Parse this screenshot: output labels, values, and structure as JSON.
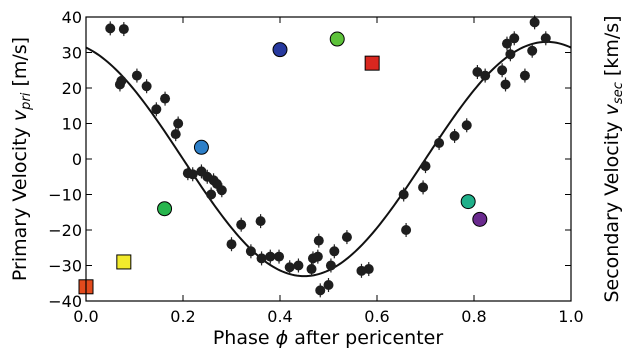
{
  "chart_data": {
    "type": "scatter",
    "title": "",
    "xlabel": "Phase ϕ after pericenter",
    "ylabel_left": "Primary Velocity v_pri [m/s]",
    "ylabel_right": "Secondary Velocity v_sec [km/s]",
    "xlabel_parts": [
      "Phase ",
      "ϕ",
      " after pericenter"
    ],
    "ylabel_left_parts": [
      "Primary Velocity ",
      "v",
      "pri",
      " [m/s]"
    ],
    "ylabel_right_parts": [
      "Secondary Velocity ",
      "v",
      "sec",
      " [km/s]"
    ],
    "xlim": [
      0.0,
      1.0
    ],
    "ylim": [
      -40,
      40
    ],
    "xticks": [
      0.0,
      0.2,
      0.4,
      0.6,
      0.8,
      1.0
    ],
    "xtick_labels": [
      "0.0",
      "0.2",
      "0.4",
      "0.6",
      "0.8",
      "1.0"
    ],
    "yticks": [
      -40,
      -30,
      -20,
      -10,
      0,
      10,
      20,
      30,
      40
    ],
    "ytick_labels": [
      "−40",
      "−30",
      "−20",
      "−10",
      "0",
      "10",
      "20",
      "30",
      "40"
    ],
    "grid": false,
    "legend": "none",
    "primary_rv": [
      [
        0.05,
        36.8
      ],
      [
        0.07,
        21.0
      ],
      [
        0.073,
        22.0
      ],
      [
        0.078,
        36.6
      ],
      [
        0.105,
        23.5
      ],
      [
        0.125,
        20.5
      ],
      [
        0.145,
        14.0
      ],
      [
        0.163,
        17.0
      ],
      [
        0.185,
        7.0
      ],
      [
        0.19,
        10.0
      ],
      [
        0.21,
        -4.0
      ],
      [
        0.22,
        -4.3
      ],
      [
        0.238,
        -3.5
      ],
      [
        0.25,
        -5.0
      ],
      [
        0.258,
        -10.0
      ],
      [
        0.263,
        -6.0
      ],
      [
        0.27,
        -7.0
      ],
      [
        0.28,
        -8.8
      ],
      [
        0.3,
        -24.0
      ],
      [
        0.32,
        -18.5
      ],
      [
        0.34,
        -26.0
      ],
      [
        0.36,
        -17.5
      ],
      [
        0.362,
        -28.0
      ],
      [
        0.38,
        -27.5
      ],
      [
        0.398,
        -27.5
      ],
      [
        0.42,
        -30.5
      ],
      [
        0.438,
        -30.0
      ],
      [
        0.465,
        -31.0
      ],
      [
        0.468,
        -28.0
      ],
      [
        0.478,
        -27.5
      ],
      [
        0.48,
        -23.0
      ],
      [
        0.483,
        -37.0
      ],
      [
        0.5,
        -35.5
      ],
      [
        0.505,
        -30.0
      ],
      [
        0.512,
        -26.0
      ],
      [
        0.538,
        -22.0
      ],
      [
        0.568,
        -31.5
      ],
      [
        0.583,
        -31.0
      ],
      [
        0.655,
        -10.0
      ],
      [
        0.66,
        -20.0
      ],
      [
        0.695,
        -8.0
      ],
      [
        0.7,
        -2.0
      ],
      [
        0.728,
        4.5
      ],
      [
        0.76,
        6.5
      ],
      [
        0.785,
        9.5
      ],
      [
        0.807,
        24.5
      ],
      [
        0.823,
        23.5
      ],
      [
        0.858,
        25.0
      ],
      [
        0.865,
        21.0
      ],
      [
        0.868,
        32.5
      ],
      [
        0.875,
        29.5
      ],
      [
        0.883,
        34.0
      ],
      [
        0.905,
        23.5
      ],
      [
        0.92,
        30.5
      ],
      [
        0.925,
        38.5
      ],
      [
        0.948,
        34.0
      ]
    ],
    "secondary_rv": [
      {
        "phase": 0.0,
        "v": -36.0,
        "color": "#e24a1c",
        "marker": "square"
      },
      {
        "phase": 0.078,
        "v": -29.0,
        "color": "#f2ea2c",
        "marker": "square"
      },
      {
        "phase": 0.162,
        "v": -14.0,
        "color": "#27b54d",
        "marker": "circle"
      },
      {
        "phase": 0.238,
        "v": 3.3,
        "color": "#2d7fc8",
        "marker": "circle"
      },
      {
        "phase": 0.4,
        "v": 30.8,
        "color": "#27399e",
        "marker": "circle"
      },
      {
        "phase": 0.518,
        "v": 33.8,
        "color": "#5dc23a",
        "marker": "circle"
      },
      {
        "phase": 0.59,
        "v": 27.0,
        "color": "#d9271f",
        "marker": "square"
      },
      {
        "phase": 0.788,
        "v": -12.0,
        "color": "#20b08a",
        "marker": "circle"
      },
      {
        "phase": 0.812,
        "v": -17.0,
        "color": "#6a2a8e",
        "marker": "circle"
      }
    ],
    "model_curve": {
      "type": "cosine",
      "amplitude": 33.0,
      "offset": 0.5,
      "min_phase": 0.45
    }
  }
}
